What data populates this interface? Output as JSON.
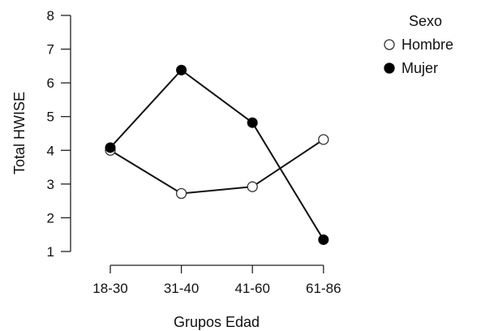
{
  "chart_data": {
    "type": "line",
    "categories": [
      "18-30",
      "31-40",
      "41-60",
      "61-86"
    ],
    "xlabel": "Grupos Edad",
    "ylabel": "Total HWISE",
    "ylim": [
      1,
      8
    ],
    "yticks": [
      "1",
      "2",
      "3",
      "4",
      "5",
      "6",
      "7",
      "8"
    ],
    "legend": {
      "title": "Sexo",
      "position": "top-right"
    },
    "grid": false,
    "series": [
      {
        "name": "Hombre",
        "marker": "open-circle",
        "values": [
          4.0,
          2.72,
          2.92,
          4.32
        ]
      },
      {
        "name": "Mujer",
        "marker": "filled-circle",
        "values": [
          4.08,
          6.38,
          4.82,
          1.35
        ]
      }
    ],
    "colors": {
      "line": "#111111",
      "open_fill": "#ffffff",
      "filled": "#000000"
    }
  }
}
